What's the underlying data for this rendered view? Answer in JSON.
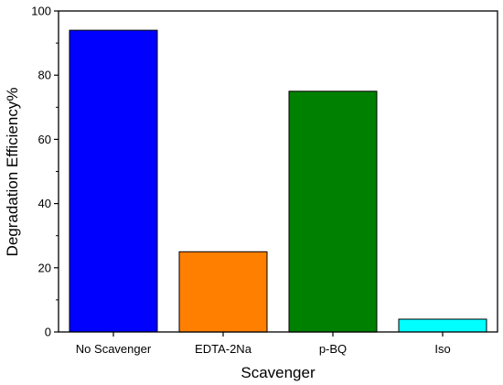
{
  "chart_data": {
    "type": "bar",
    "xlabel": "Scavenger",
    "ylabel": "Degradation Efficiency%",
    "categories": [
      "No Scavenger",
      "EDTA-2Na",
      "p-BQ",
      "Iso"
    ],
    "values": [
      94,
      25,
      75,
      4
    ],
    "colors": [
      "#0000ff",
      "#ff8000",
      "#008000",
      "#00ffff"
    ],
    "ylim": [
      0,
      100
    ],
    "yticks": [
      0,
      20,
      40,
      60,
      80,
      100
    ],
    "grid": false,
    "legend": "none"
  }
}
